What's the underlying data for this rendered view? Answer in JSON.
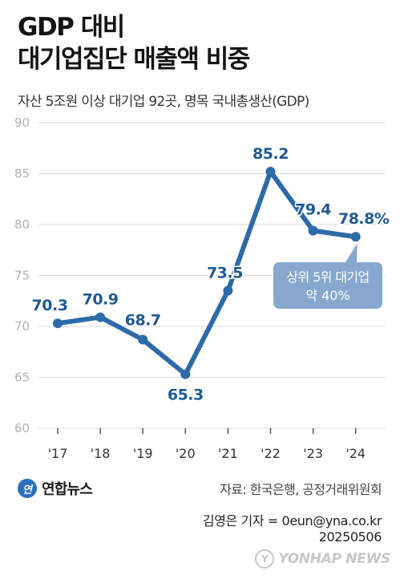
{
  "header": {
    "title_line1": "GDP 대비",
    "title_line2": "대기업집단 매출액 비중",
    "subtitle": "자산 5조원 이상 대기업 92곳, 명목 국내총생산(GDP)"
  },
  "chart_data": {
    "type": "line",
    "categories": [
      "'17",
      "'18",
      "'19",
      "'20",
      "'21",
      "'22",
      "'23",
      "'24"
    ],
    "values": [
      70.3,
      70.9,
      68.7,
      65.3,
      73.5,
      85.2,
      79.4,
      78.8
    ],
    "value_labels": [
      "70.3",
      "70.9",
      "68.7",
      "65.3",
      "73.5",
      "85.2",
      "79.4",
      "78.8%"
    ],
    "ylim": [
      60,
      90
    ],
    "yticks": [
      60,
      65,
      70,
      75,
      80,
      85,
      90
    ],
    "ytick_labels": [
      "60",
      "65",
      "70",
      "75",
      "80",
      "85",
      "90"
    ],
    "grid": true,
    "line_color": "#2d6aa8",
    "label_color": "#1f5a93",
    "callout": {
      "line1": "상위 5위 대기업",
      "line2": "약 40%",
      "color": "#86a8cf"
    }
  },
  "footer": {
    "brand_logo": "연",
    "brand_name": "연합뉴스",
    "source": "자료: 한국은행, 공정거래위원회",
    "credit_line1": "김영은 기자 = 0eun@yna.co.kr",
    "credit_line2": "20250506",
    "watermark_logo": "Y",
    "watermark": "YONHAP NEWS"
  }
}
